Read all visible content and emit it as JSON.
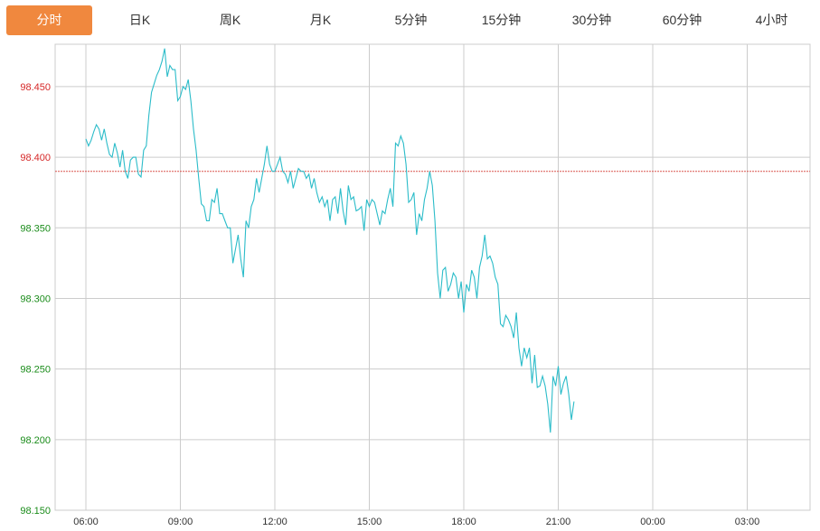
{
  "tabs": [
    {
      "label": "分时",
      "active": true
    },
    {
      "label": "日K",
      "active": false
    },
    {
      "label": "周K",
      "active": false
    },
    {
      "label": "月K",
      "active": false
    },
    {
      "label": "5分钟",
      "active": false
    },
    {
      "label": "15分钟",
      "active": false
    },
    {
      "label": "30分钟",
      "active": false
    },
    {
      "label": "60分钟",
      "active": false
    },
    {
      "label": "4小时",
      "active": false
    }
  ],
  "colors": {
    "active_tab_bg": "#f0883e",
    "line": "#2bbcc9",
    "reference_line": "#d9534f",
    "y_above_ref": "#d62828",
    "y_below_ref": "#1a8c1a",
    "grid": "#cccccc"
  },
  "chart_data": {
    "type": "line",
    "title": "",
    "xlabel": "",
    "ylabel": "",
    "ylim": [
      98.15,
      98.48
    ],
    "yticks": [
      "98.450",
      "98.400",
      "98.350",
      "98.300",
      "98.250",
      "98.200",
      "98.150"
    ],
    "xticks": [
      "06:00",
      "09:00",
      "12:00",
      "15:00",
      "18:00",
      "21:00",
      "00:00",
      "03:00"
    ],
    "reference_value": 98.39,
    "grid": true,
    "series": [
      {
        "values": [
          [
            "06:00",
            98.413
          ],
          [
            "06:05",
            98.408
          ],
          [
            "06:10",
            98.412
          ],
          [
            "06:15",
            98.418
          ],
          [
            "06:20",
            98.423
          ],
          [
            "06:25",
            98.42
          ],
          [
            "06:30",
            98.412
          ],
          [
            "06:35",
            98.42
          ],
          [
            "06:40",
            98.41
          ],
          [
            "06:45",
            98.402
          ],
          [
            "06:50",
            98.4
          ],
          [
            "06:55",
            98.41
          ],
          [
            "07:00",
            98.403
          ],
          [
            "07:05",
            98.393
          ],
          [
            "07:10",
            98.405
          ],
          [
            "07:15",
            98.39
          ],
          [
            "07:20",
            98.385
          ],
          [
            "07:25",
            98.398
          ],
          [
            "07:30",
            98.4
          ],
          [
            "07:35",
            98.4
          ],
          [
            "07:40",
            98.388
          ],
          [
            "07:45",
            98.386
          ],
          [
            "07:50",
            98.405
          ],
          [
            "07:55",
            98.408
          ],
          [
            "08:00",
            98.43
          ],
          [
            "08:05",
            98.446
          ],
          [
            "08:10",
            98.452
          ],
          [
            "08:15",
            98.458
          ],
          [
            "08:20",
            98.462
          ],
          [
            "08:25",
            98.468
          ],
          [
            "08:30",
            98.477
          ],
          [
            "08:35",
            98.457
          ],
          [
            "08:40",
            98.465
          ],
          [
            "08:45",
            98.462
          ],
          [
            "08:50",
            98.462
          ],
          [
            "08:55",
            98.44
          ],
          [
            "09:00",
            98.443
          ],
          [
            "09:05",
            98.45
          ],
          [
            "09:10",
            98.448
          ],
          [
            "09:15",
            98.455
          ],
          [
            "09:20",
            98.44
          ],
          [
            "09:25",
            98.42
          ],
          [
            "09:30",
            98.405
          ],
          [
            "09:35",
            98.385
          ],
          [
            "09:40",
            98.367
          ],
          [
            "09:45",
            98.365
          ],
          [
            "09:50",
            98.355
          ],
          [
            "09:55",
            98.355
          ],
          [
            "10:00",
            98.37
          ],
          [
            "10:05",
            98.368
          ],
          [
            "10:10",
            98.378
          ],
          [
            "10:15",
            98.36
          ],
          [
            "10:20",
            98.36
          ],
          [
            "10:25",
            98.355
          ],
          [
            "10:30",
            98.35
          ],
          [
            "10:35",
            98.35
          ],
          [
            "10:40",
            98.325
          ],
          [
            "10:45",
            98.335
          ],
          [
            "10:50",
            98.345
          ],
          [
            "10:55",
            98.328
          ],
          [
            "11:00",
            98.315
          ],
          [
            "11:05",
            98.355
          ],
          [
            "11:10",
            98.35
          ],
          [
            "11:15",
            98.365
          ],
          [
            "11:20",
            98.37
          ],
          [
            "11:25",
            98.385
          ],
          [
            "11:30",
            98.375
          ],
          [
            "11:35",
            98.385
          ],
          [
            "11:40",
            98.395
          ],
          [
            "11:45",
            98.408
          ],
          [
            "11:50",
            98.395
          ],
          [
            "11:55",
            98.39
          ],
          [
            "12:00",
            98.39
          ],
          [
            "12:05",
            98.395
          ],
          [
            "12:10",
            98.4
          ],
          [
            "12:15",
            98.39
          ],
          [
            "12:20",
            98.388
          ],
          [
            "12:25",
            98.382
          ],
          [
            "12:30",
            98.39
          ],
          [
            "12:35",
            98.378
          ],
          [
            "12:40",
            98.385
          ],
          [
            "12:45",
            98.392
          ],
          [
            "12:50",
            98.39
          ],
          [
            "12:55",
            98.39
          ],
          [
            "13:00",
            98.385
          ],
          [
            "13:05",
            98.388
          ],
          [
            "13:10",
            98.378
          ],
          [
            "13:15",
            98.385
          ],
          [
            "13:20",
            98.375
          ],
          [
            "13:25",
            98.368
          ],
          [
            "13:30",
            98.372
          ],
          [
            "13:35",
            98.365
          ],
          [
            "13:40",
            98.37
          ],
          [
            "13:45",
            98.355
          ],
          [
            "13:50",
            98.37
          ],
          [
            "13:55",
            98.372
          ],
          [
            "14:00",
            98.36
          ],
          [
            "14:05",
            98.378
          ],
          [
            "14:10",
            98.362
          ],
          [
            "14:15",
            98.352
          ],
          [
            "14:20",
            98.38
          ],
          [
            "14:25",
            98.37
          ],
          [
            "14:30",
            98.372
          ],
          [
            "14:35",
            98.362
          ],
          [
            "14:40",
            98.363
          ],
          [
            "14:45",
            98.365
          ],
          [
            "14:50",
            98.348
          ],
          [
            "14:55",
            98.37
          ],
          [
            "15:00",
            98.365
          ],
          [
            "15:05",
            98.37
          ],
          [
            "15:10",
            98.368
          ],
          [
            "15:15",
            98.36
          ],
          [
            "15:20",
            98.352
          ],
          [
            "15:25",
            98.362
          ],
          [
            "15:30",
            98.36
          ],
          [
            "15:35",
            98.37
          ],
          [
            "15:40",
            98.378
          ],
          [
            "15:45",
            98.365
          ],
          [
            "15:50",
            98.41
          ],
          [
            "15:55",
            98.408
          ],
          [
            "16:00",
            98.415
          ],
          [
            "16:05",
            98.41
          ],
          [
            "16:10",
            98.395
          ],
          [
            "16:15",
            98.368
          ],
          [
            "16:20",
            98.37
          ],
          [
            "16:25",
            98.375
          ],
          [
            "16:30",
            98.345
          ],
          [
            "16:35",
            98.36
          ],
          [
            "16:40",
            98.355
          ],
          [
            "16:45",
            98.37
          ],
          [
            "16:50",
            98.378
          ],
          [
            "16:55",
            98.39
          ],
          [
            "17:00",
            98.38
          ],
          [
            "17:05",
            98.355
          ],
          [
            "17:10",
            98.318
          ],
          [
            "17:15",
            98.3
          ],
          [
            "17:20",
            98.32
          ],
          [
            "17:25",
            98.322
          ],
          [
            "17:30",
            98.305
          ],
          [
            "17:35",
            98.31
          ],
          [
            "17:40",
            98.318
          ],
          [
            "17:45",
            98.315
          ],
          [
            "17:50",
            98.3
          ],
          [
            "17:55",
            98.312
          ],
          [
            "18:00",
            98.29
          ],
          [
            "18:05",
            98.31
          ],
          [
            "18:10",
            98.305
          ],
          [
            "18:15",
            98.32
          ],
          [
            "18:20",
            98.315
          ],
          [
            "18:25",
            98.3
          ],
          [
            "18:30",
            98.322
          ],
          [
            "18:35",
            98.33
          ],
          [
            "18:40",
            98.345
          ],
          [
            "18:45",
            98.328
          ],
          [
            "18:50",
            98.33
          ],
          [
            "18:55",
            98.325
          ],
          [
            "19:00",
            98.315
          ],
          [
            "19:05",
            98.31
          ],
          [
            "19:10",
            98.282
          ],
          [
            "19:15",
            98.28
          ],
          [
            "19:20",
            98.288
          ],
          [
            "19:25",
            98.285
          ],
          [
            "19:30",
            98.28
          ],
          [
            "19:35",
            98.272
          ],
          [
            "19:40",
            98.29
          ],
          [
            "19:45",
            98.265
          ],
          [
            "19:50",
            98.252
          ],
          [
            "19:55",
            98.265
          ],
          [
            "20:00",
            98.258
          ],
          [
            "20:05",
            98.265
          ],
          [
            "20:10",
            98.24
          ],
          [
            "20:15",
            98.26
          ],
          [
            "20:20",
            98.237
          ],
          [
            "20:25",
            98.238
          ],
          [
            "20:30",
            98.245
          ],
          [
            "20:35",
            98.238
          ],
          [
            "20:40",
            98.225
          ],
          [
            "20:45",
            98.205
          ],
          [
            "20:50",
            98.245
          ],
          [
            "20:55",
            98.238
          ],
          [
            "21:00",
            98.252
          ],
          [
            "21:05",
            98.232
          ],
          [
            "21:10",
            98.24
          ],
          [
            "21:15",
            98.245
          ],
          [
            "21:20",
            98.232
          ],
          [
            "21:25",
            98.214
          ],
          [
            "21:30",
            98.227
          ]
        ]
      }
    ]
  }
}
